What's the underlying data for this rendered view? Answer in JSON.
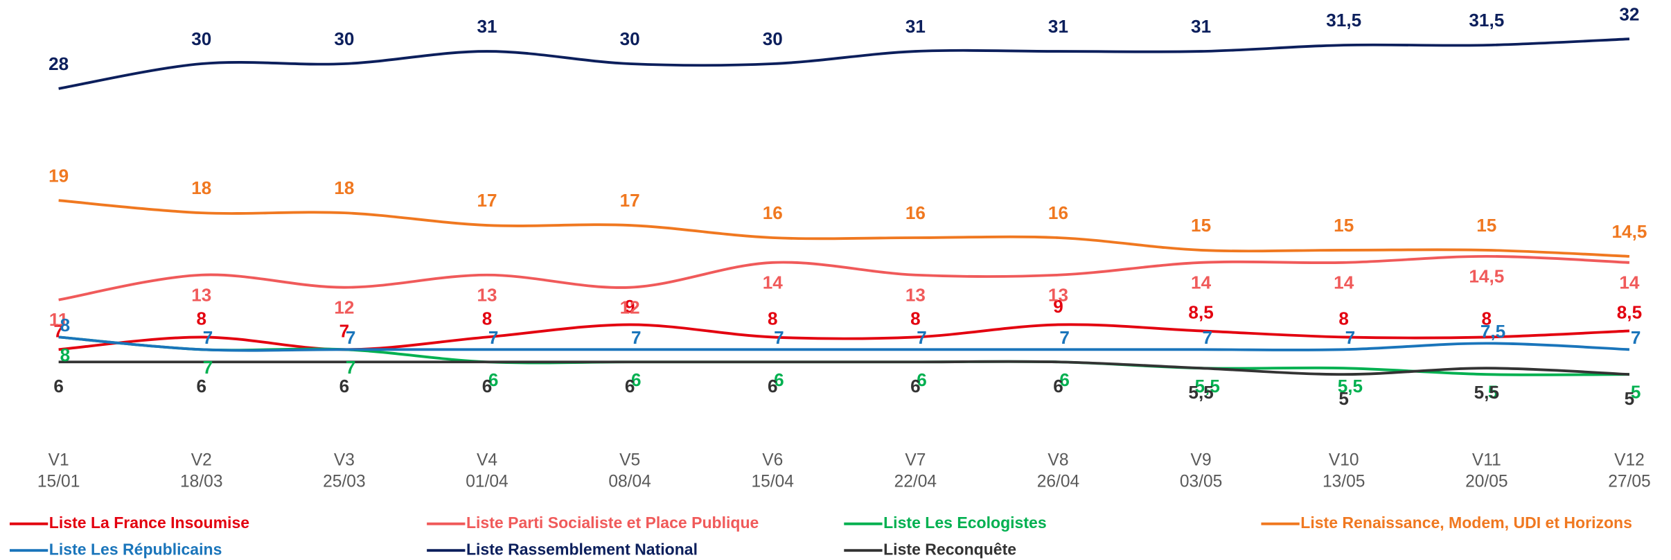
{
  "chart_data": {
    "type": "line",
    "categories": [
      "V1",
      "V2",
      "V3",
      "V4",
      "V5",
      "V6",
      "V7",
      "V8",
      "V9",
      "V10",
      "V11",
      "V12"
    ],
    "dates": [
      "15/01",
      "18/03",
      "25/03",
      "01/04",
      "08/04",
      "15/04",
      "22/04",
      "26/04",
      "03/05",
      "13/05",
      "20/05",
      "27/05"
    ],
    "series": [
      {
        "name": "Liste La France Insoumise",
        "color": "#e3000f",
        "values": [
          7,
          8,
          7,
          8,
          9,
          8,
          8,
          9,
          8.5,
          8,
          8,
          8.5
        ],
        "value_labels": [
          "7",
          "8",
          "7",
          "8",
          "9",
          "8",
          "8",
          "9",
          "8,5",
          "8",
          "8",
          "8,5"
        ]
      },
      {
        "name": "Liste Parti Socialiste et Place Publique",
        "color": "#f05a5a",
        "values": [
          11,
          13,
          12,
          13,
          12,
          14,
          13,
          13,
          14,
          14,
          14.5,
          14
        ],
        "value_labels": [
          "11",
          "13",
          "12",
          "13",
          "12",
          "14",
          "13",
          "13",
          "14",
          "14",
          "14,5",
          "14"
        ]
      },
      {
        "name": "Liste Les Ecologistes",
        "color": "#00b050",
        "values": [
          8,
          7,
          7,
          6,
          6,
          6,
          6,
          6,
          5.5,
          5.5,
          5,
          5
        ],
        "value_labels": [
          "8",
          "7",
          "7",
          "6",
          "6",
          "6",
          "6",
          "6",
          "5,5",
          "5,5",
          "5",
          "5"
        ]
      },
      {
        "name": "Liste Renaissance, Modem, UDI et Horizons",
        "color": "#f07820",
        "values": [
          19,
          18,
          18,
          17,
          17,
          16,
          16,
          16,
          15,
          15,
          15,
          14.5
        ],
        "value_labels": [
          "19",
          "18",
          "18",
          "17",
          "17",
          "16",
          "16",
          "16",
          "15",
          "15",
          "15",
          "14,5"
        ]
      },
      {
        "name": "Liste Les Républicains",
        "color": "#1a75bb",
        "values": [
          8,
          7,
          7,
          7,
          7,
          7,
          7,
          7,
          7,
          7,
          7.5,
          7
        ],
        "value_labels": [
          "8",
          "7",
          "7",
          "7",
          "7",
          "7",
          "7",
          "7",
          "7",
          "7",
          "7,5",
          "7"
        ]
      },
      {
        "name": "Liste Rassemblement National",
        "color": "#0c1f5c",
        "values": [
          28,
          30,
          30,
          31,
          30,
          30,
          31,
          31,
          31,
          31.5,
          31.5,
          32
        ],
        "value_labels": [
          "28",
          "30",
          "30",
          "31",
          "30",
          "30",
          "31",
          "31",
          "31",
          "31,5",
          "31,5",
          "32"
        ]
      },
      {
        "name": "Liste Reconquête",
        "color": "#333333",
        "values": [
          6,
          6,
          6,
          6,
          6,
          6,
          6,
          6,
          5.5,
          5,
          5.5,
          5
        ],
        "value_labels": [
          "6",
          "6",
          "6",
          "6",
          "6",
          "6",
          "6",
          "6",
          "5,5",
          "5",
          "5,5",
          "5"
        ]
      }
    ]
  }
}
